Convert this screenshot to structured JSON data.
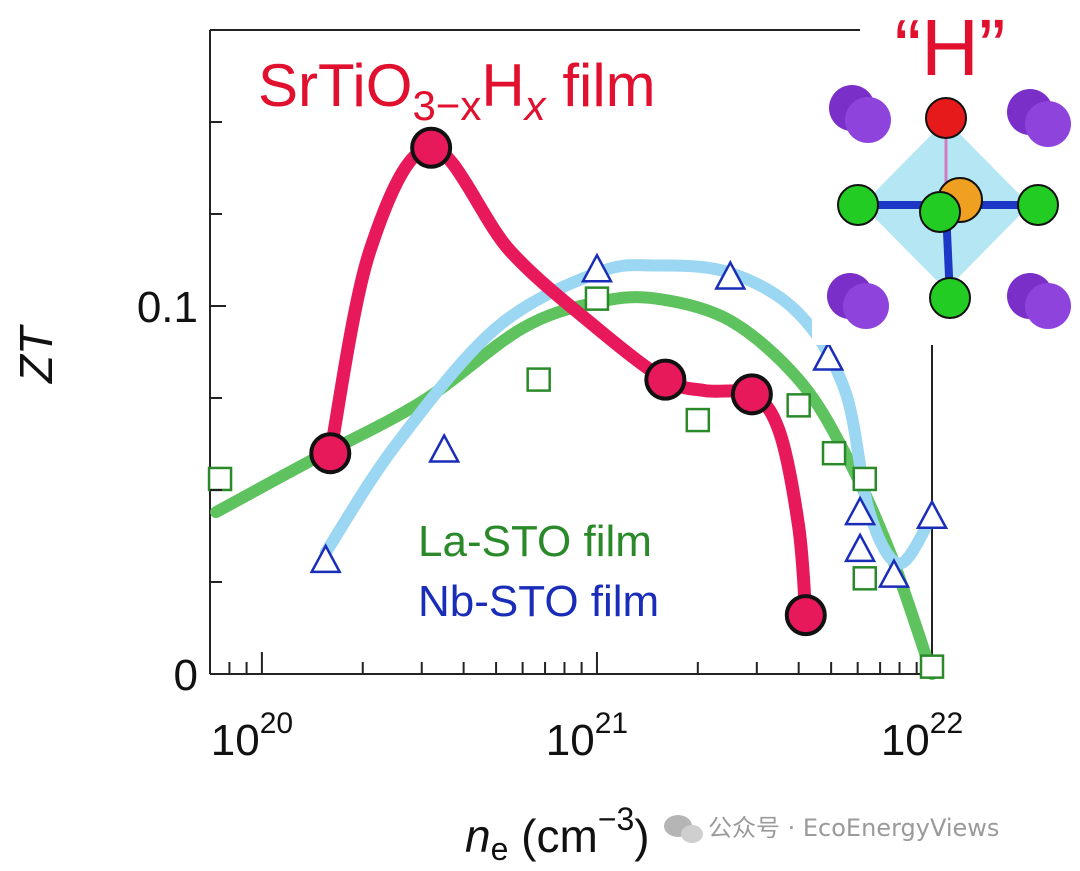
{
  "chart_data": {
    "type": "scatter",
    "x_scale": "log",
    "xlim": [
      7e+19,
      1e+22
    ],
    "ylim": [
      0,
      0.175
    ],
    "title_main": "SrTiO",
    "title_sub": "3−x",
    "title_mid": "H",
    "title_sub2": "x",
    "title_end": " film",
    "xlabel_n": "n",
    "xlabel_sub": "e",
    "xlabel_unit": " (cm",
    "xlabel_sup": "−3",
    "xlabel_close": ")",
    "ylabel": "ZT",
    "y_tick_labels": [
      {
        "value": 0,
        "label": "0"
      },
      {
        "value": 0.1,
        "label": "0.1"
      }
    ],
    "x_tick_labels": [
      {
        "value": 1e+20,
        "base": "10",
        "exp": "20"
      },
      {
        "value": 1e+21,
        "base": "10",
        "exp": "21"
      },
      {
        "value": 1e+22,
        "base": "10",
        "exp": "22"
      }
    ],
    "inset_label": "“H”",
    "series": [
      {
        "name": "SrTiO3−xHx film",
        "marker": "circle",
        "color": "#e8195a",
        "points": [
          {
            "x": 1.6e+20,
            "y": 0.06
          },
          {
            "x": 3.2e+20,
            "y": 0.143
          },
          {
            "x": 1.6e+21,
            "y": 0.08
          },
          {
            "x": 2.9e+21,
            "y": 0.076
          },
          {
            "x": 4.2e+21,
            "y": 0.016
          }
        ]
      },
      {
        "name": "La-STO film",
        "marker": "square",
        "color": "#2a8a2a",
        "points": [
          {
            "x": 7.5e+19,
            "y": 0.053
          },
          {
            "x": 6.7e+20,
            "y": 0.08
          },
          {
            "x": 1e+21,
            "y": 0.102
          },
          {
            "x": 2e+21,
            "y": 0.069
          },
          {
            "x": 4e+21,
            "y": 0.073
          },
          {
            "x": 5.1e+21,
            "y": 0.06
          },
          {
            "x": 6.3e+21,
            "y": 0.053
          },
          {
            "x": 6.3e+21,
            "y": 0.026
          },
          {
            "x": 1e+22,
            "y": 0.002
          }
        ]
      },
      {
        "name": "Nb-STO film",
        "marker": "triangle",
        "color": "#1a2db8",
        "points": [
          {
            "x": 1.55e+20,
            "y": 0.031
          },
          {
            "x": 3.5e+20,
            "y": 0.061
          },
          {
            "x": 1e+21,
            "y": 0.11
          },
          {
            "x": 2.5e+21,
            "y": 0.108
          },
          {
            "x": 4.9e+21,
            "y": 0.086
          },
          {
            "x": 6.1e+21,
            "y": 0.044
          },
          {
            "x": 6.1e+21,
            "y": 0.034
          },
          {
            "x": 7.7e+21,
            "y": 0.027
          },
          {
            "x": 1e+22,
            "y": 0.043
          }
        ]
      }
    ],
    "guide_curves": [
      {
        "series": "SrTiO3−xHx film",
        "color": "#e8195a",
        "points": [
          [
            1.6e+20,
            0.06
          ],
          [
            2.1e+20,
            0.115
          ],
          [
            3.2e+20,
            0.143
          ],
          [
            5.5e+20,
            0.115
          ],
          [
            1e+21,
            0.094
          ],
          [
            1.6e+21,
            0.08
          ],
          [
            2.1e+21,
            0.077
          ],
          [
            2.9e+21,
            0.076
          ],
          [
            3.5e+21,
            0.066
          ],
          [
            4e+21,
            0.04
          ],
          [
            4.2e+21,
            0.016
          ]
        ]
      },
      {
        "series": "La-STO film",
        "color": "#5ec25e",
        "points": [
          [
            7.3e+19,
            0.044
          ],
          [
            1.4e+20,
            0.058
          ],
          [
            3e+20,
            0.074
          ],
          [
            6e+20,
            0.094
          ],
          [
            1e+21,
            0.101
          ],
          [
            1.5e+21,
            0.102
          ],
          [
            2.5e+21,
            0.096
          ],
          [
            4e+21,
            0.08
          ],
          [
            5.5e+21,
            0.06
          ],
          [
            7.5e+21,
            0.033
          ],
          [
            1e+22,
            0.0
          ]
        ]
      },
      {
        "series": "Nb-STO film",
        "color": "#9bd7f2",
        "points": [
          [
            1.55e+20,
            0.033
          ],
          [
            2.5e+20,
            0.062
          ],
          [
            5e+20,
            0.094
          ],
          [
            1e+21,
            0.109
          ],
          [
            1.5e+21,
            0.111
          ],
          [
            2.5e+21,
            0.109
          ],
          [
            4e+21,
            0.098
          ],
          [
            5.5e+21,
            0.077
          ],
          [
            6.5e+21,
            0.044
          ],
          [
            8e+21,
            0.03
          ],
          [
            1e+22,
            0.043
          ]
        ]
      }
    ],
    "legend_entries": [
      {
        "text": "La-STO film",
        "color": "#2a8a2a"
      },
      {
        "text": "Nb-STO film",
        "color": "#1a2db8"
      }
    ],
    "colors": {
      "title": "#e0102e",
      "inset_label": "#e0102e"
    }
  },
  "watermark": {
    "text": "公众号 · EcoEnergyViews",
    "icon": "wechat-icon"
  }
}
